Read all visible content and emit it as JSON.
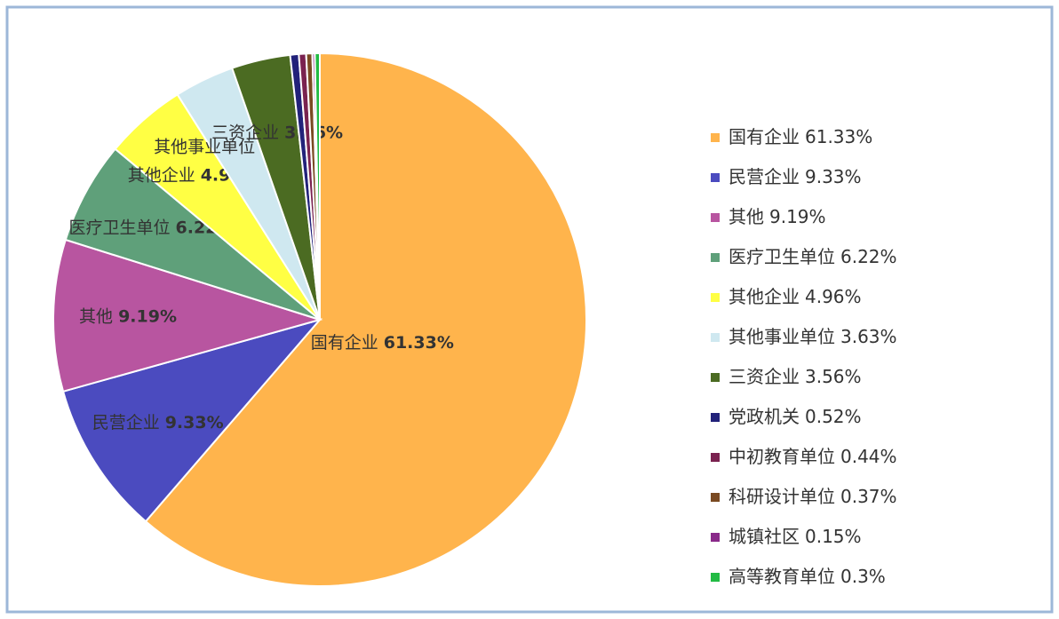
{
  "chart_data": {
    "type": "pie",
    "categories": [
      "国有企业",
      "民营企业",
      "其他",
      "医疗卫生单位",
      "其他企业",
      "其他事业单位",
      "三资企业",
      "党政机关",
      "中初教育单位",
      "科研设计单位",
      "城镇社区",
      "高等教育单位"
    ],
    "values": [
      61.33,
      9.33,
      9.19,
      6.22,
      4.96,
      3.63,
      3.56,
      0.52,
      0.44,
      0.37,
      0.15,
      0.3
    ],
    "value_labels": [
      "61.33%",
      "9.33%",
      "9.19%",
      "6.22%",
      "4.96%",
      "3.63%",
      "3.56%",
      "0.52%",
      "0.44%",
      "0.37%",
      "0.15%",
      "0.3%"
    ],
    "colors": [
      "#FFB44C",
      "#4B4BBF",
      "#B855A0",
      "#5FA07A",
      "#FFFF44",
      "#CFE8F0",
      "#4B6B22",
      "#22227A",
      "#7A2250",
      "#7A4A22",
      "#8A2A8A",
      "#22BB44"
    ],
    "legend": "right"
  }
}
